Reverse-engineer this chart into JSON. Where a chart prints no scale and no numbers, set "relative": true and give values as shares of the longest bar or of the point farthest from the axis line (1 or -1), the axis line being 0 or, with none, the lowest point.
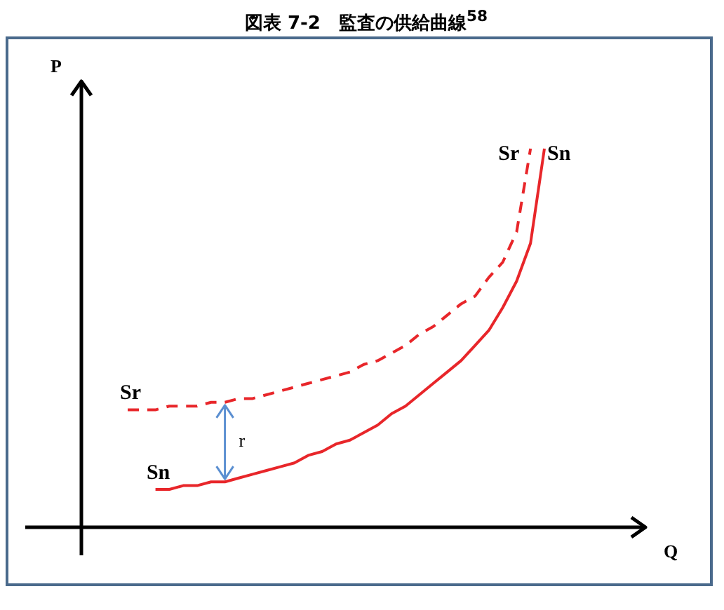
{
  "chart_data": {
    "type": "line",
    "title": "図表 7-2　監査の供給曲線$^{58}$",
    "relative": true,
    "marker": "none",
    "annotations": [
      "P",
      "Q",
      "r"
    ],
    "categories": [
      null,
      null,
      null,
      null,
      null,
      null,
      null,
      null,
      null,
      null,
      null,
      null,
      null,
      null,
      null,
      null,
      null,
      null,
      null,
      null,
      null,
      null,
      null,
      null,
      null,
      null,
      null,
      null,
      null,
      null,
      null
    ],
    "series": [
      {
        "name": "Sr",
        "color": "#e8262a",
        "line_style": "dashed",
        "values": [
          0.31,
          0.31,
          0.31,
          0.32,
          0.32,
          0.32,
          0.33,
          0.33,
          0.34,
          0.34,
          0.35,
          0.36,
          0.37,
          0.38,
          0.39,
          0.4,
          0.41,
          0.43,
          0.44,
          0.46,
          0.48,
          0.51,
          0.53,
          0.56,
          0.59,
          0.61,
          0.66,
          0.7,
          0.78,
          1.0,
          null
        ]
      },
      {
        "name": "Sn",
        "color": "#e8262a",
        "line_style": "solid",
        "values": [
          null,
          null,
          0.1,
          0.1,
          0.11,
          0.11,
          0.12,
          0.12,
          0.13,
          0.14,
          0.15,
          0.16,
          0.17,
          0.19,
          0.2,
          0.22,
          0.23,
          0.25,
          0.27,
          0.3,
          0.32,
          0.35,
          0.38,
          0.41,
          0.44,
          0.48,
          0.52,
          0.58,
          0.65,
          0.75,
          1.0
        ]
      }
    ]
  }
}
